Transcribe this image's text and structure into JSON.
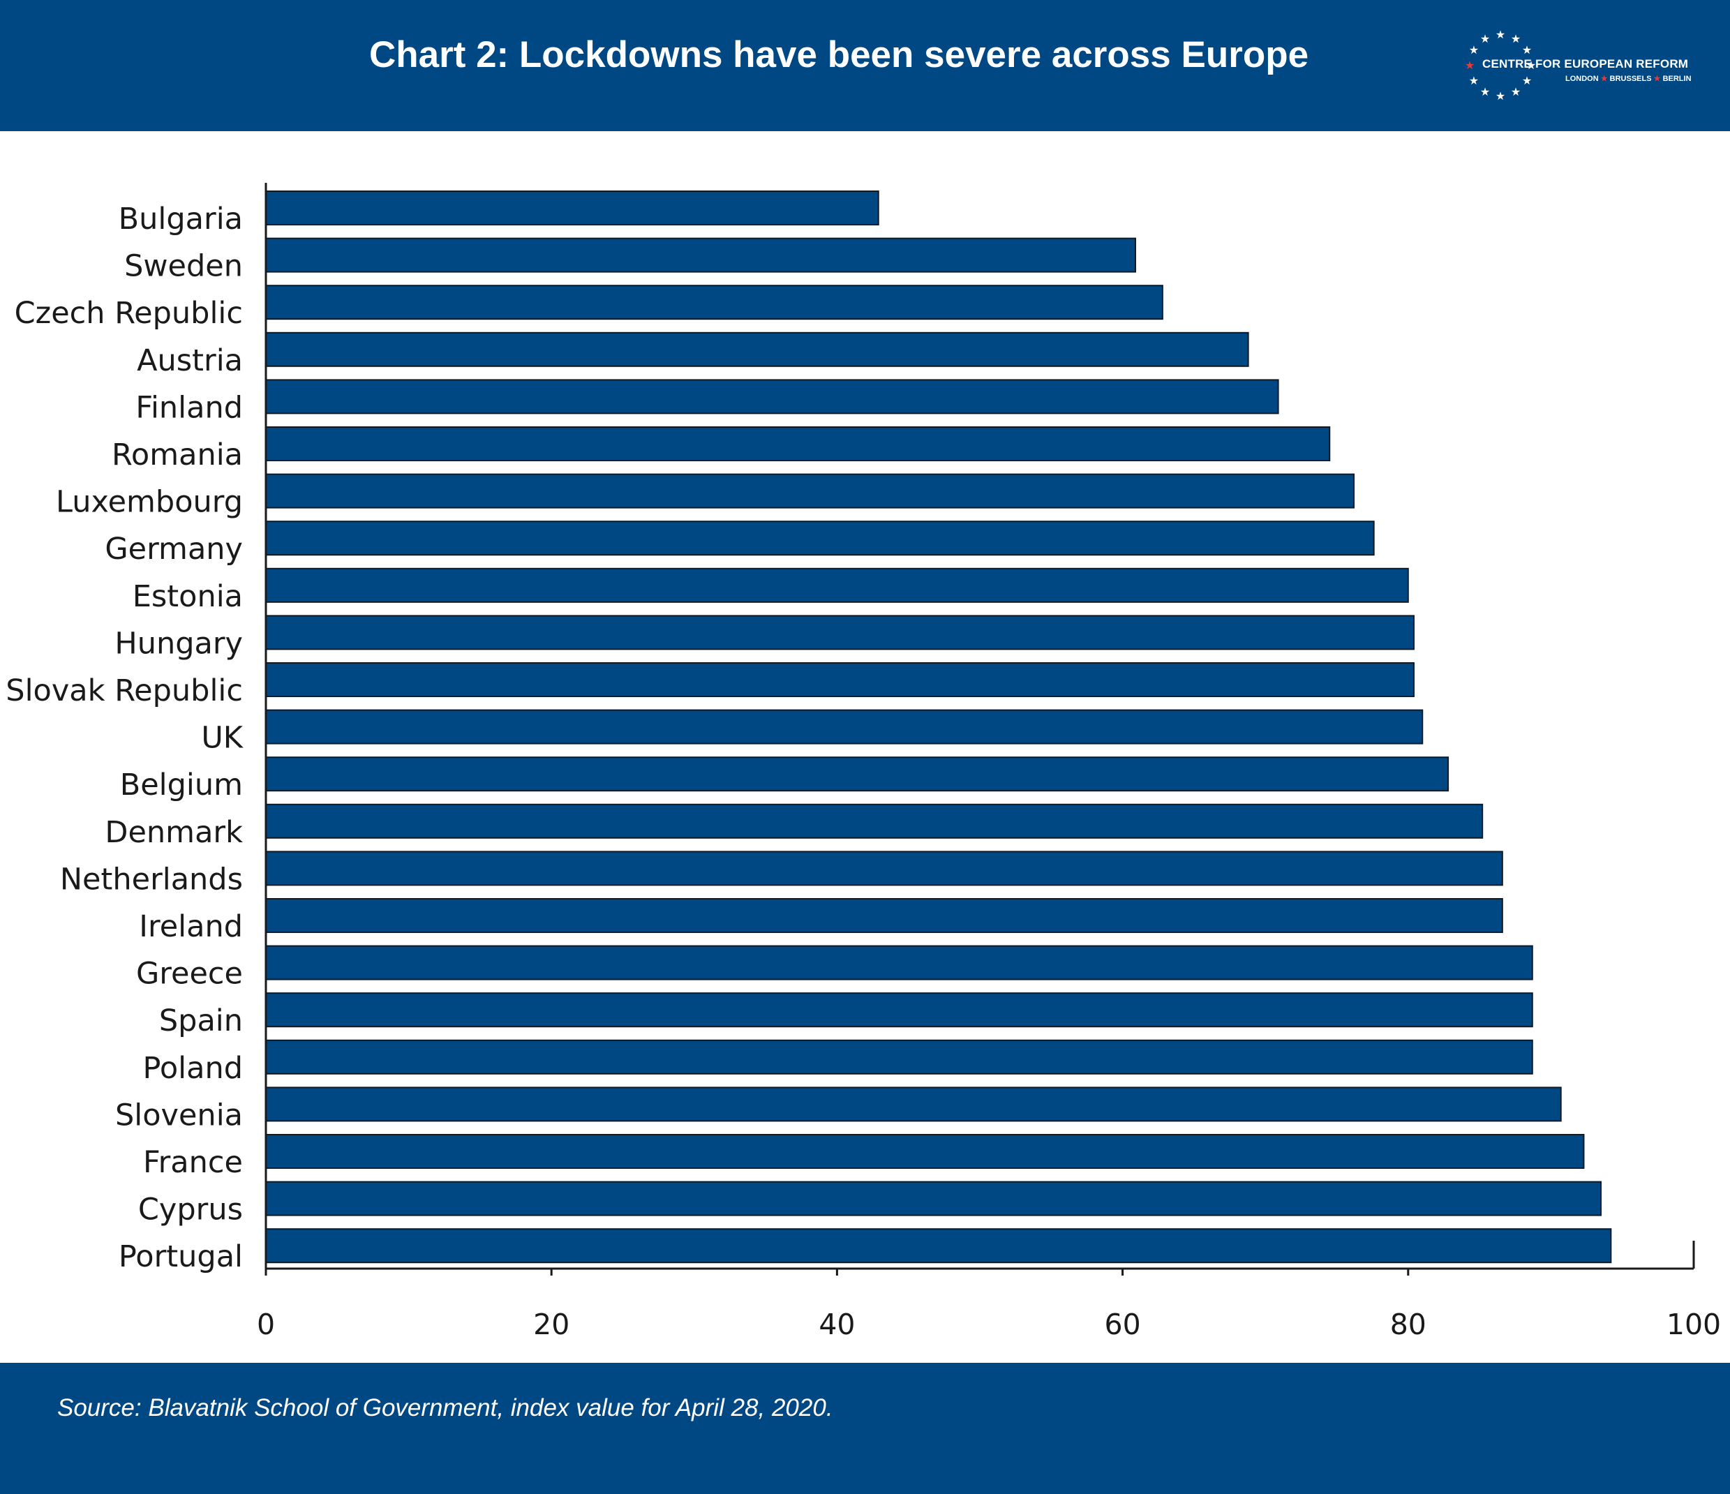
{
  "header": {
    "title": "Chart 2: Lockdowns have been severe across Europe",
    "background_color": "#004883"
  },
  "logo": {
    "name": "CENTRE FOR EUROPEAN REFORM",
    "cities": [
      "LONDON",
      "BRUSSELS",
      "BERLIN"
    ],
    "accent_color": "#e43a3a"
  },
  "footer": {
    "source": "Source: Blavatnik School of Government, index value for April 28, 2020."
  },
  "chart_data": {
    "type": "bar",
    "orientation": "horizontal",
    "categories": [
      "Bulgaria",
      "Sweden",
      "Czech Republic",
      "Austria",
      "Finland",
      "Romania",
      "Luxembourg",
      "Germany",
      "Estonia",
      "Hungary",
      "Slovak Republic",
      "UK",
      "Belgium",
      "Denmark",
      "Netherlands",
      "Ireland",
      "Greece",
      "Spain",
      "Poland",
      "Slovenia",
      "France",
      "Cyprus",
      "Portugal"
    ],
    "values": [
      42.9,
      60.9,
      62.8,
      68.8,
      70.9,
      74.5,
      76.2,
      77.6,
      80.0,
      80.4,
      80.4,
      81.0,
      82.8,
      85.2,
      86.6,
      86.6,
      88.7,
      88.7,
      88.7,
      90.7,
      92.3,
      93.5,
      94.2
    ],
    "xlim": [
      0,
      100
    ],
    "xticks": [
      0,
      20,
      40,
      60,
      80,
      100
    ],
    "title": "Chart 2: Lockdowns have been severe across Europe",
    "xlabel": "",
    "ylabel": "",
    "grid": false,
    "bar_color": "#004883",
    "bar_edge_color": "#0d1a26"
  }
}
